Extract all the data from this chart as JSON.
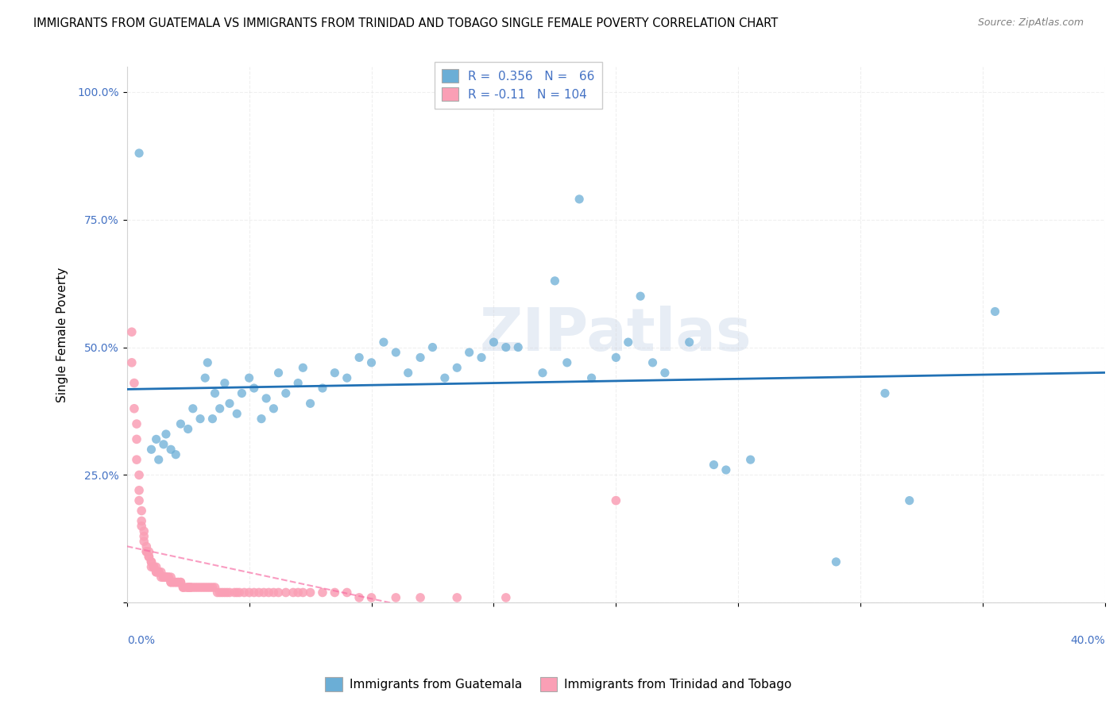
{
  "title": "IMMIGRANTS FROM GUATEMALA VS IMMIGRANTS FROM TRINIDAD AND TOBAGO SINGLE FEMALE POVERTY CORRELATION CHART",
  "source": "Source: ZipAtlas.com",
  "ylabel": "Single Female Poverty",
  "xlim": [
    0.0,
    0.4
  ],
  "ylim": [
    0.0,
    1.05
  ],
  "watermark": "ZIPatlas",
  "legend_label1": "Immigrants from Guatemala",
  "legend_label2": "Immigrants from Trinidad and Tobago",
  "R1": 0.356,
  "N1": 66,
  "R2": -0.11,
  "N2": 104,
  "blue_color": "#6baed6",
  "pink_color": "#fa9fb5",
  "blue_line_color": "#2171b5",
  "pink_line_color": "#f768a1",
  "guatemala_points": [
    [
      0.005,
      0.88
    ],
    [
      0.01,
      0.3
    ],
    [
      0.012,
      0.32
    ],
    [
      0.013,
      0.28
    ],
    [
      0.015,
      0.31
    ],
    [
      0.016,
      0.33
    ],
    [
      0.018,
      0.3
    ],
    [
      0.02,
      0.29
    ],
    [
      0.022,
      0.35
    ],
    [
      0.025,
      0.34
    ],
    [
      0.027,
      0.38
    ],
    [
      0.03,
      0.36
    ],
    [
      0.032,
      0.44
    ],
    [
      0.033,
      0.47
    ],
    [
      0.035,
      0.36
    ],
    [
      0.036,
      0.41
    ],
    [
      0.038,
      0.38
    ],
    [
      0.04,
      0.43
    ],
    [
      0.042,
      0.39
    ],
    [
      0.045,
      0.37
    ],
    [
      0.047,
      0.41
    ],
    [
      0.05,
      0.44
    ],
    [
      0.052,
      0.42
    ],
    [
      0.055,
      0.36
    ],
    [
      0.057,
      0.4
    ],
    [
      0.06,
      0.38
    ],
    [
      0.062,
      0.45
    ],
    [
      0.065,
      0.41
    ],
    [
      0.07,
      0.43
    ],
    [
      0.072,
      0.46
    ],
    [
      0.075,
      0.39
    ],
    [
      0.08,
      0.42
    ],
    [
      0.085,
      0.45
    ],
    [
      0.09,
      0.44
    ],
    [
      0.095,
      0.48
    ],
    [
      0.1,
      0.47
    ],
    [
      0.105,
      0.51
    ],
    [
      0.11,
      0.49
    ],
    [
      0.115,
      0.45
    ],
    [
      0.12,
      0.48
    ],
    [
      0.125,
      0.5
    ],
    [
      0.13,
      0.44
    ],
    [
      0.135,
      0.46
    ],
    [
      0.14,
      0.49
    ],
    [
      0.145,
      0.48
    ],
    [
      0.15,
      0.51
    ],
    [
      0.155,
      0.5
    ],
    [
      0.16,
      0.5
    ],
    [
      0.17,
      0.45
    ],
    [
      0.175,
      0.63
    ],
    [
      0.18,
      0.47
    ],
    [
      0.185,
      0.79
    ],
    [
      0.19,
      0.44
    ],
    [
      0.2,
      0.48
    ],
    [
      0.205,
      0.51
    ],
    [
      0.21,
      0.6
    ],
    [
      0.215,
      0.47
    ],
    [
      0.22,
      0.45
    ],
    [
      0.23,
      0.51
    ],
    [
      0.24,
      0.27
    ],
    [
      0.245,
      0.26
    ],
    [
      0.255,
      0.28
    ],
    [
      0.29,
      0.08
    ],
    [
      0.31,
      0.41
    ],
    [
      0.32,
      0.2
    ],
    [
      0.355,
      0.57
    ]
  ],
  "trinidad_points": [
    [
      0.002,
      0.53
    ],
    [
      0.002,
      0.47
    ],
    [
      0.003,
      0.43
    ],
    [
      0.003,
      0.38
    ],
    [
      0.004,
      0.35
    ],
    [
      0.004,
      0.32
    ],
    [
      0.004,
      0.28
    ],
    [
      0.005,
      0.25
    ],
    [
      0.005,
      0.22
    ],
    [
      0.005,
      0.2
    ],
    [
      0.006,
      0.18
    ],
    [
      0.006,
      0.16
    ],
    [
      0.006,
      0.15
    ],
    [
      0.007,
      0.14
    ],
    [
      0.007,
      0.13
    ],
    [
      0.007,
      0.12
    ],
    [
      0.008,
      0.11
    ],
    [
      0.008,
      0.1
    ],
    [
      0.008,
      0.1
    ],
    [
      0.009,
      0.1
    ],
    [
      0.009,
      0.09
    ],
    [
      0.009,
      0.09
    ],
    [
      0.01,
      0.08
    ],
    [
      0.01,
      0.08
    ],
    [
      0.01,
      0.07
    ],
    [
      0.011,
      0.07
    ],
    [
      0.011,
      0.07
    ],
    [
      0.011,
      0.07
    ],
    [
      0.012,
      0.07
    ],
    [
      0.012,
      0.06
    ],
    [
      0.012,
      0.06
    ],
    [
      0.013,
      0.06
    ],
    [
      0.013,
      0.06
    ],
    [
      0.013,
      0.06
    ],
    [
      0.014,
      0.06
    ],
    [
      0.014,
      0.05
    ],
    [
      0.015,
      0.05
    ],
    [
      0.015,
      0.05
    ],
    [
      0.015,
      0.05
    ],
    [
      0.016,
      0.05
    ],
    [
      0.016,
      0.05
    ],
    [
      0.016,
      0.05
    ],
    [
      0.017,
      0.05
    ],
    [
      0.017,
      0.05
    ],
    [
      0.018,
      0.05
    ],
    [
      0.018,
      0.04
    ],
    [
      0.018,
      0.04
    ],
    [
      0.019,
      0.04
    ],
    [
      0.019,
      0.04
    ],
    [
      0.02,
      0.04
    ],
    [
      0.02,
      0.04
    ],
    [
      0.021,
      0.04
    ],
    [
      0.021,
      0.04
    ],
    [
      0.022,
      0.04
    ],
    [
      0.022,
      0.04
    ],
    [
      0.023,
      0.03
    ],
    [
      0.023,
      0.03
    ],
    [
      0.024,
      0.03
    ],
    [
      0.025,
      0.03
    ],
    [
      0.025,
      0.03
    ],
    [
      0.026,
      0.03
    ],
    [
      0.026,
      0.03
    ],
    [
      0.027,
      0.03
    ],
    [
      0.028,
      0.03
    ],
    [
      0.029,
      0.03
    ],
    [
      0.03,
      0.03
    ],
    [
      0.031,
      0.03
    ],
    [
      0.032,
      0.03
    ],
    [
      0.033,
      0.03
    ],
    [
      0.034,
      0.03
    ],
    [
      0.035,
      0.03
    ],
    [
      0.036,
      0.03
    ],
    [
      0.037,
      0.02
    ],
    [
      0.038,
      0.02
    ],
    [
      0.039,
      0.02
    ],
    [
      0.04,
      0.02
    ],
    [
      0.041,
      0.02
    ],
    [
      0.042,
      0.02
    ],
    [
      0.044,
      0.02
    ],
    [
      0.045,
      0.02
    ],
    [
      0.046,
      0.02
    ],
    [
      0.048,
      0.02
    ],
    [
      0.05,
      0.02
    ],
    [
      0.052,
      0.02
    ],
    [
      0.054,
      0.02
    ],
    [
      0.056,
      0.02
    ],
    [
      0.058,
      0.02
    ],
    [
      0.06,
      0.02
    ],
    [
      0.062,
      0.02
    ],
    [
      0.065,
      0.02
    ],
    [
      0.068,
      0.02
    ],
    [
      0.07,
      0.02
    ],
    [
      0.072,
      0.02
    ],
    [
      0.075,
      0.02
    ],
    [
      0.08,
      0.02
    ],
    [
      0.085,
      0.02
    ],
    [
      0.09,
      0.02
    ],
    [
      0.095,
      0.01
    ],
    [
      0.1,
      0.01
    ],
    [
      0.11,
      0.01
    ],
    [
      0.12,
      0.01
    ],
    [
      0.135,
      0.01
    ],
    [
      0.155,
      0.01
    ],
    [
      0.2,
      0.2
    ]
  ]
}
